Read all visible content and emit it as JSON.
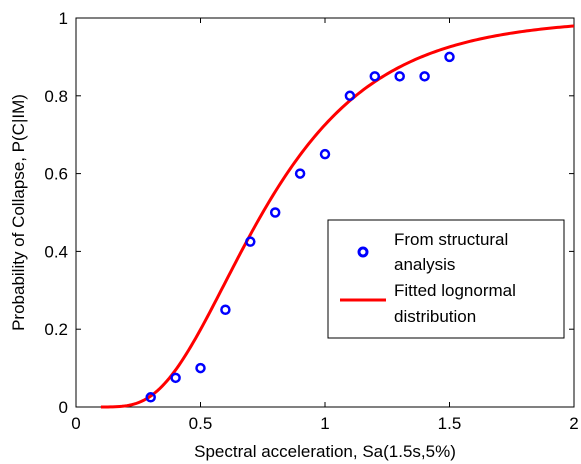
{
  "chart_data": {
    "type": "scatter",
    "title": "",
    "xlabel": "Spectral acceleration, Sa(1.5s,5%)",
    "ylabel": "Probability of Collapse, P(C|IM)",
    "xlim": [
      0,
      2
    ],
    "ylim": [
      0,
      1
    ],
    "xticks": [
      0,
      0.5,
      1,
      1.5,
      2
    ],
    "xtick_labels": [
      "0",
      "0.5",
      "1",
      "1.5",
      "2"
    ],
    "yticks": [
      0,
      0.2,
      0.4,
      0.6,
      0.8,
      1
    ],
    "ytick_labels": [
      "0",
      "0.2",
      "0.4",
      "0.6",
      "0.8",
      "1"
    ],
    "grid": false,
    "legend_position": "right",
    "series": [
      {
        "name": "From structural analysis",
        "legend_lines": [
          "From structural",
          "analysis"
        ],
        "kind": "markers",
        "color": "#0000ff",
        "x": [
          0.3,
          0.4,
          0.5,
          0.6,
          0.7,
          0.8,
          0.9,
          1.0,
          1.1,
          1.2,
          1.3,
          1.4,
          1.5
        ],
        "y": [
          0.025,
          0.075,
          0.1,
          0.25,
          0.425,
          0.5,
          0.6,
          0.65,
          0.8,
          0.85,
          0.85,
          0.85,
          0.9
        ]
      },
      {
        "name": "Fitted lognormal distribution",
        "legend_lines": [
          "Fitted lognormal",
          "distribution"
        ],
        "kind": "line",
        "color": "#ff0000",
        "median": 0.75,
        "beta": 0.48,
        "x_range": [
          0.1,
          2.0
        ]
      }
    ]
  }
}
